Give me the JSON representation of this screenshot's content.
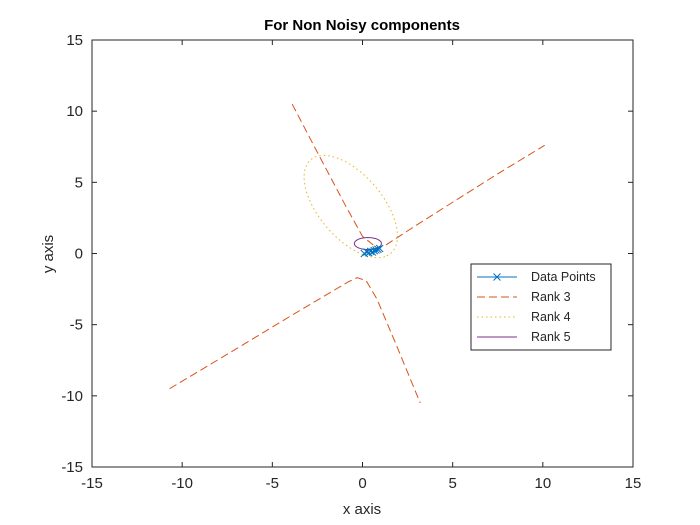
{
  "chart_data": {
    "type": "line",
    "title": "For Non Noisy components",
    "xlabel": "x axis",
    "ylabel": "y axis",
    "xlim": [
      -15,
      15
    ],
    "ylim": [
      -15,
      15
    ],
    "xticks": [
      -15,
      -10,
      -5,
      0,
      5,
      10,
      15
    ],
    "yticks": [
      -15,
      -10,
      -5,
      0,
      5,
      10,
      15
    ],
    "grid": false,
    "legend_position": "right",
    "series": [
      {
        "name": "Data Points",
        "style": "solid-markers",
        "marker": "x",
        "color": "#0072BD",
        "x": [
          0.1,
          0.25,
          0.35,
          0.45,
          0.55,
          0.65,
          0.75,
          0.85,
          0.95
        ],
        "y": [
          0.0,
          0.1,
          0.05,
          0.15,
          0.1,
          0.2,
          0.25,
          0.3,
          0.35
        ]
      },
      {
        "name": "Rank 3",
        "style": "dashed",
        "color": "#D95319",
        "branches": [
          {
            "x": [
              -3.9,
              -2.5,
              -1.0,
              0.0,
              0.6
            ],
            "y": [
              10.5,
              7.1,
              3.5,
              1.2,
              0.6
            ]
          },
          {
            "x": [
              1.3,
              3.0,
              5.0,
              7.5,
              10.1
            ],
            "y": [
              0.6,
              2.0,
              3.6,
              5.6,
              7.6
            ]
          },
          {
            "x": [
              -10.7,
              -7.0,
              -4.0,
              -2.0,
              -0.8,
              -0.3,
              0.2,
              0.8,
              1.8,
              3.2
            ],
            "y": [
              -9.5,
              -6.7,
              -4.4,
              -2.9,
              -2.0,
              -1.7,
              -1.9,
              -3.2,
              -6.2,
              -10.5
            ]
          }
        ]
      },
      {
        "name": "Rank 4",
        "style": "dotted",
        "color": "#EDB120",
        "ellipse": {
          "cx": -0.65,
          "cy": 3.3,
          "rx": 4.0,
          "ry": 1.9,
          "angle_deg": -60
        }
      },
      {
        "name": "Rank 5",
        "style": "solid",
        "color": "#7E2F8E",
        "ellipse": {
          "cx": 0.3,
          "cy": 0.7,
          "rx": 0.75,
          "ry": 0.42,
          "angle_deg": 0
        }
      }
    ]
  }
}
